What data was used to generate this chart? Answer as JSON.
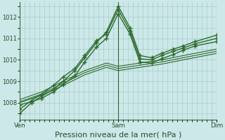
{
  "background_color": "#cce8e8",
  "plot_bg_color": "#cce8e8",
  "grid_color": "#aacccc",
  "line_color": "#2d6a2d",
  "ylim": [
    1007.2,
    1012.7
  ],
  "yticks": [
    1008,
    1009,
    1010,
    1011,
    1012
  ],
  "xlabel": "Pression niveau de la mer( hPa )",
  "xlabel_fontsize": 8,
  "xtick_labels": [
    "Ven",
    "Sam",
    "Dim"
  ],
  "xtick_positions": [
    0.0,
    0.5,
    1.0
  ],
  "vline_positions": [
    0.0,
    0.5,
    1.0
  ],
  "series": [
    [
      0.0,
      1007.5,
      0.06,
      1008.0,
      0.11,
      1008.3,
      0.17,
      1008.6,
      0.22,
      1009.0,
      0.28,
      1009.5,
      0.33,
      1010.1,
      0.39,
      1010.8,
      0.44,
      1011.3,
      0.5,
      1012.5,
      0.56,
      1011.5,
      0.61,
      1010.2,
      0.67,
      1010.1,
      0.72,
      1010.3,
      0.78,
      1010.5,
      0.83,
      1010.65,
      0.89,
      1010.85,
      1.0,
      1011.15
    ],
    [
      0.0,
      1007.7,
      0.06,
      1008.1,
      0.11,
      1008.4,
      0.17,
      1008.8,
      0.22,
      1009.2,
      0.28,
      1009.6,
      0.33,
      1010.2,
      0.39,
      1010.9,
      0.44,
      1011.2,
      0.5,
      1012.35,
      0.56,
      1011.35,
      0.61,
      1010.05,
      0.67,
      1010.0,
      0.72,
      1010.2,
      0.78,
      1010.4,
      0.83,
      1010.55,
      0.89,
      1010.75,
      1.0,
      1011.0
    ],
    [
      0.0,
      1007.9,
      0.06,
      1008.05,
      0.11,
      1008.2,
      0.17,
      1008.5,
      0.22,
      1008.85,
      0.28,
      1009.25,
      0.33,
      1009.9,
      0.39,
      1010.6,
      0.44,
      1011.0,
      0.5,
      1012.15,
      0.56,
      1011.2,
      0.61,
      1009.9,
      0.67,
      1009.85,
      0.72,
      1010.05,
      0.78,
      1010.25,
      0.83,
      1010.45,
      0.89,
      1010.65,
      1.0,
      1010.85
    ],
    [
      0.0,
      1008.05,
      0.11,
      1008.4,
      0.22,
      1008.9,
      0.33,
      1009.4,
      0.44,
      1009.75,
      0.5,
      1009.6,
      0.61,
      1009.75,
      0.72,
      1009.9,
      0.83,
      1010.1,
      1.0,
      1010.4
    ],
    [
      0.0,
      1008.15,
      0.11,
      1008.5,
      0.22,
      1009.0,
      0.33,
      1009.5,
      0.44,
      1009.85,
      0.5,
      1009.7,
      0.61,
      1009.85,
      0.72,
      1010.0,
      0.83,
      1010.2,
      1.0,
      1010.5
    ],
    [
      0.0,
      1008.0,
      0.11,
      1008.35,
      0.22,
      1008.8,
      0.33,
      1009.3,
      0.44,
      1009.65,
      0.5,
      1009.5,
      0.61,
      1009.65,
      0.72,
      1009.8,
      0.83,
      1010.0,
      1.0,
      1010.3
    ]
  ],
  "marker_series": [
    0,
    1,
    2
  ],
  "line_widths": [
    1.0,
    1.0,
    1.0,
    0.8,
    0.8,
    0.8
  ],
  "marker": "+",
  "marker_size": 4.0,
  "figsize": [
    3.2,
    2.0
  ],
  "dpi": 100
}
